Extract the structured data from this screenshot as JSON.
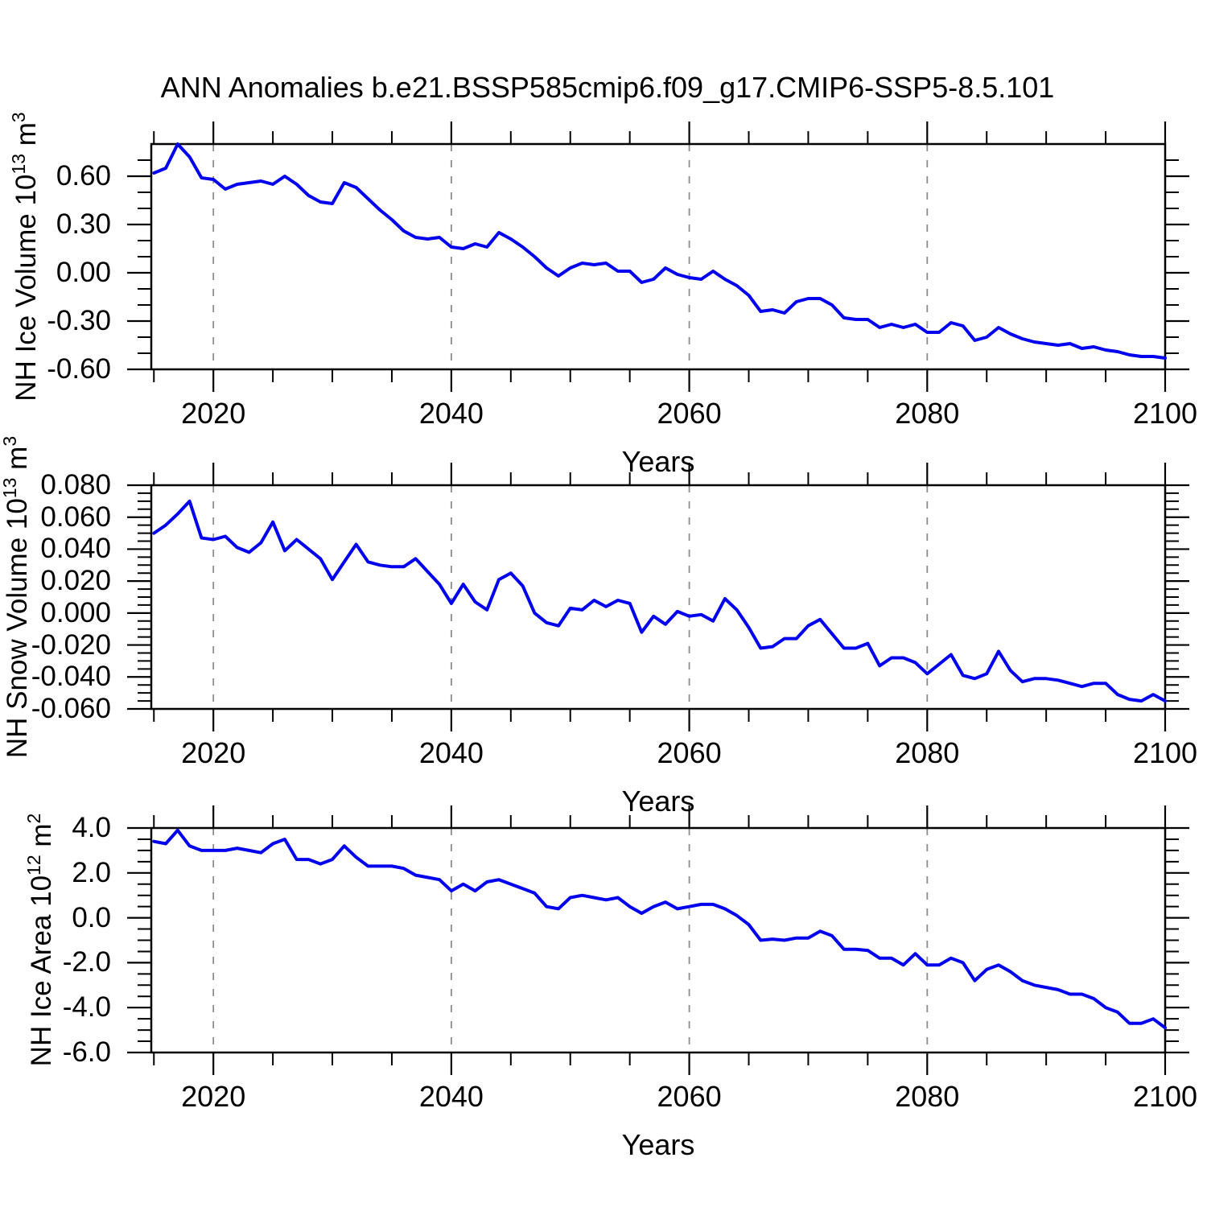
{
  "title": "ANN Anomalies b.e21.BSSP585cmip6.f09_g17.CMIP6-SSP5-8.5.101",
  "colors": {
    "line": "#0000ee",
    "grid": "#8c8c8c",
    "axis": "#000000",
    "background": "#ffffff",
    "text": "#000000"
  },
  "x_axis": {
    "label": "Years",
    "range": [
      2014.78,
      2100
    ],
    "major_ticks": [
      2020,
      2040,
      2060,
      2080,
      2100
    ],
    "major_tick_labels": [
      "2020",
      "2040",
      "2060",
      "2080",
      "2100"
    ],
    "minor_step": 5,
    "gridlines": [
      2020,
      2040,
      2060,
      2080
    ]
  },
  "chart_data": [
    {
      "type": "line",
      "name": "nh-ice-volume",
      "ylabel_plain": "NH Ice Volume 10^13 m^3",
      "ylabel_parts": [
        {
          "t": "NH Ice Volume 10",
          "sup": false
        },
        {
          "t": "13",
          "sup": true
        },
        {
          "t": " m",
          "sup": false
        },
        {
          "t": "3",
          "sup": true
        }
      ],
      "xlabel": "Years",
      "ylim": [
        -0.6,
        0.8
      ],
      "ytick_major": [
        0.6,
        0.3,
        0.0,
        -0.3,
        -0.6
      ],
      "ytick_labels": [
        "0.60",
        "0.30",
        "0.00",
        "-0.30",
        "-0.60"
      ],
      "ytick_minor_step": 0.1,
      "x_start": 2015,
      "x_step": 1,
      "grid": false,
      "legend": "none",
      "values": [
        0.62,
        0.65,
        0.8,
        0.72,
        0.59,
        0.58,
        0.52,
        0.55,
        0.56,
        0.57,
        0.55,
        0.6,
        0.55,
        0.48,
        0.44,
        0.43,
        0.56,
        0.53,
        0.46,
        0.39,
        0.33,
        0.26,
        0.22,
        0.21,
        0.22,
        0.16,
        0.15,
        0.18,
        0.16,
        0.25,
        0.21,
        0.16,
        0.1,
        0.03,
        -0.02,
        0.03,
        0.06,
        0.05,
        0.06,
        0.01,
        0.01,
        -0.06,
        -0.04,
        0.03,
        -0.01,
        -0.03,
        -0.04,
        0.01,
        -0.04,
        -0.08,
        -0.14,
        -0.24,
        -0.23,
        -0.25,
        -0.18,
        -0.16,
        -0.16,
        -0.2,
        -0.28,
        -0.29,
        -0.29,
        -0.34,
        -0.32,
        -0.34,
        -0.32,
        -0.37,
        -0.37,
        -0.31,
        -0.33,
        -0.42,
        -0.4,
        -0.34,
        -0.38,
        -0.41,
        -0.43,
        -0.44,
        -0.45,
        -0.44,
        -0.47,
        -0.46,
        -0.48,
        -0.49,
        -0.51,
        -0.52,
        -0.52,
        -0.53
      ]
    },
    {
      "type": "line",
      "name": "nh-snow-volume",
      "ylabel_plain": "NH Snow Volume 10^13 m^3",
      "ylabel_parts": [
        {
          "t": "NH Snow Volume 10",
          "sup": false
        },
        {
          "t": "13",
          "sup": true
        },
        {
          "t": " m",
          "sup": false
        },
        {
          "t": "3",
          "sup": true
        }
      ],
      "xlabel": "Years",
      "ylim": [
        -0.06,
        0.08
      ],
      "ytick_major": [
        0.08,
        0.06,
        0.04,
        0.02,
        0.0,
        -0.02,
        -0.04,
        -0.06
      ],
      "ytick_labels": [
        "0.080",
        "0.060",
        "0.040",
        "0.020",
        "0.000",
        "-0.020",
        "-0.040",
        "-0.060"
      ],
      "ytick_minor_step": 0.005,
      "x_start": 2015,
      "x_step": 1,
      "grid": false,
      "legend": "none",
      "values": [
        0.05,
        0.055,
        0.062,
        0.07,
        0.047,
        0.046,
        0.048,
        0.041,
        0.038,
        0.044,
        0.057,
        0.039,
        0.046,
        0.04,
        0.034,
        0.021,
        0.032,
        0.043,
        0.032,
        0.03,
        0.029,
        0.029,
        0.034,
        0.026,
        0.018,
        0.006,
        0.018,
        0.007,
        0.002,
        0.021,
        0.025,
        0.017,
        0.0,
        -0.006,
        -0.008,
        0.003,
        0.002,
        0.008,
        0.004,
        0.008,
        0.006,
        -0.012,
        -0.002,
        -0.007,
        0.001,
        -0.002,
        -0.001,
        -0.005,
        0.009,
        0.002,
        -0.009,
        -0.022,
        -0.021,
        -0.016,
        -0.016,
        -0.008,
        -0.004,
        -0.013,
        -0.022,
        -0.022,
        -0.019,
        -0.033,
        -0.028,
        -0.028,
        -0.031,
        -0.038,
        -0.032,
        -0.026,
        -0.039,
        -0.041,
        -0.038,
        -0.024,
        -0.036,
        -0.043,
        -0.041,
        -0.041,
        -0.042,
        -0.044,
        -0.046,
        -0.044,
        -0.044,
        -0.051,
        -0.054,
        -0.055,
        -0.051,
        -0.055
      ]
    },
    {
      "type": "line",
      "name": "nh-ice-area",
      "ylabel_plain": "NH Ice Area 10^12 m^2",
      "ylabel_parts": [
        {
          "t": "NH Ice Area 10",
          "sup": false
        },
        {
          "t": "12",
          "sup": true
        },
        {
          "t": " m",
          "sup": false
        },
        {
          "t": "2",
          "sup": true
        }
      ],
      "xlabel": "Years",
      "ylim": [
        -6.0,
        4.0
      ],
      "ytick_major": [
        4.0,
        2.0,
        0.0,
        -2.0,
        -4.0,
        -6.0
      ],
      "ytick_labels": [
        "4.0",
        "2.0",
        "0.0",
        "-2.0",
        "-4.0",
        "-6.0"
      ],
      "ytick_minor_step": 0.5,
      "x_start": 2015,
      "x_step": 1,
      "grid": false,
      "legend": "none",
      "values": [
        3.4,
        3.3,
        3.9,
        3.2,
        3.0,
        3.0,
        3.0,
        3.1,
        3.0,
        2.9,
        3.3,
        3.5,
        2.6,
        2.6,
        2.4,
        2.6,
        3.2,
        2.7,
        2.3,
        2.3,
        2.3,
        2.2,
        1.9,
        1.8,
        1.7,
        1.2,
        1.5,
        1.2,
        1.6,
        1.7,
        1.5,
        1.3,
        1.1,
        0.5,
        0.4,
        0.9,
        1.0,
        0.9,
        0.8,
        0.9,
        0.5,
        0.2,
        0.5,
        0.7,
        0.4,
        0.5,
        0.6,
        0.6,
        0.4,
        0.1,
        -0.3,
        -1.0,
        -0.95,
        -1.0,
        -0.9,
        -0.9,
        -0.6,
        -0.8,
        -1.4,
        -1.4,
        -1.45,
        -1.8,
        -1.8,
        -2.1,
        -1.6,
        -2.1,
        -2.1,
        -1.8,
        -2.0,
        -2.8,
        -2.3,
        -2.1,
        -2.4,
        -2.8,
        -3.0,
        -3.1,
        -3.2,
        -3.4,
        -3.4,
        -3.6,
        -4.0,
        -4.2,
        -4.7,
        -4.7,
        -4.5,
        -4.9
      ]
    }
  ]
}
